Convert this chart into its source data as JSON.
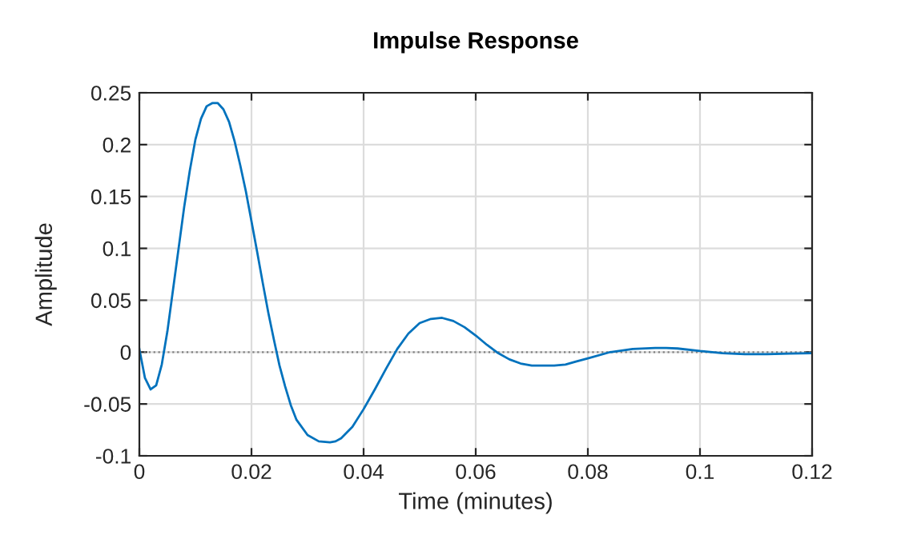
{
  "chart_data": {
    "type": "line",
    "title": "Impulse Response",
    "xlabel": "Time (minutes)",
    "ylabel": "Amplitude",
    "xlim": [
      0,
      0.12
    ],
    "xticks": [
      0,
      0.02,
      0.04,
      0.06,
      0.08,
      0.1,
      0.12
    ],
    "ylim": [
      -0.1,
      0.25
    ],
    "yticks": [
      -0.1,
      -0.05,
      0,
      0.05,
      0.1,
      0.15,
      0.2,
      0.25
    ],
    "grid": true,
    "marker": "none",
    "line_style": "solid",
    "ref_lines": [
      {
        "axis": "y",
        "value": 0,
        "color": "#808080",
        "line_style": "dotted"
      }
    ],
    "series": [
      {
        "color": "#0072bd",
        "x": [
          0,
          0.001,
          0.002,
          0.003,
          0.004,
          0.005,
          0.006,
          0.007,
          0.008,
          0.009,
          0.01,
          0.011,
          0.012,
          0.013,
          0.014,
          0.015,
          0.016,
          0.017,
          0.018,
          0.019,
          0.02,
          0.021,
          0.022,
          0.023,
          0.024,
          0.025,
          0.026,
          0.027,
          0.028,
          0.03,
          0.032,
          0.034,
          0.035,
          0.036,
          0.038,
          0.04,
          0.042,
          0.044,
          0.046,
          0.048,
          0.05,
          0.052,
          0.054,
          0.056,
          0.058,
          0.06,
          0.062,
          0.064,
          0.066,
          0.068,
          0.07,
          0.072,
          0.074,
          0.076,
          0.078,
          0.08,
          0.084,
          0.088,
          0.092,
          0.094,
          0.096,
          0.1,
          0.104,
          0.108,
          0.112,
          0.116,
          0.12
        ],
        "values": [
          0.003,
          -0.025,
          -0.036,
          -0.032,
          -0.012,
          0.02,
          0.06,
          0.1,
          0.14,
          0.175,
          0.205,
          0.225,
          0.237,
          0.24,
          0.24,
          0.234,
          0.222,
          0.203,
          0.18,
          0.155,
          0.126,
          0.097,
          0.067,
          0.038,
          0.012,
          -0.013,
          -0.033,
          -0.051,
          -0.065,
          -0.08,
          -0.086,
          -0.087,
          -0.086,
          -0.083,
          -0.072,
          -0.055,
          -0.036,
          -0.016,
          0.003,
          0.018,
          0.028,
          0.032,
          0.033,
          0.03,
          0.024,
          0.016,
          0.007,
          -0.001,
          -0.007,
          -0.011,
          -0.013,
          -0.013,
          -0.013,
          -0.012,
          -0.009,
          -0.006,
          0.0,
          0.003,
          0.004,
          0.004,
          0.0035,
          0.001,
          -0.001,
          -0.002,
          -0.002,
          -0.0015,
          -0.001
        ]
      }
    ]
  }
}
